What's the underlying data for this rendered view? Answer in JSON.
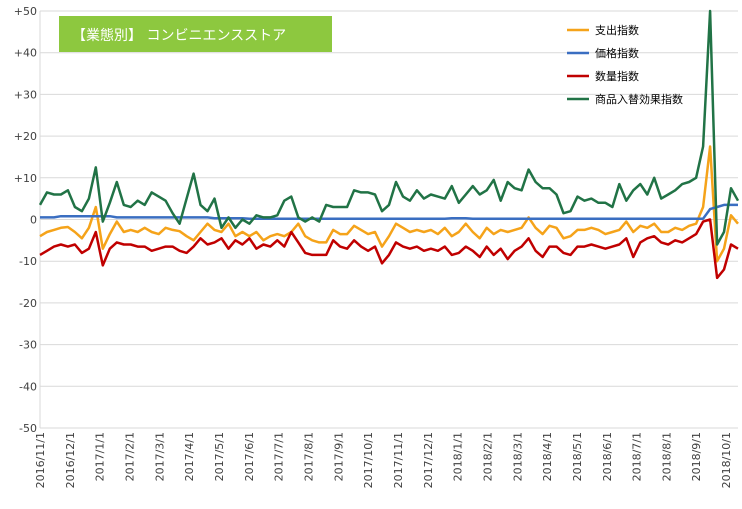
{
  "chart_data": {
    "type": "line",
    "title": "【業態別】 コンビニエンスストア",
    "xlabel": "",
    "ylabel": "",
    "ylim": [
      -50,
      50
    ],
    "yticks": [
      "+50",
      "+40",
      "+30",
      "+20",
      "+10",
      "0",
      "-10",
      "-20",
      "-30",
      "-40",
      "-50"
    ],
    "ytick_values": [
      50,
      40,
      30,
      20,
      10,
      0,
      -10,
      -20,
      -30,
      -40,
      -50
    ],
    "xtick_labels": [
      "2016/11/1",
      "2016/12/1",
      "2017/1/1",
      "2017/2/1",
      "2017/3/1",
      "2017/4/1",
      "2017/5/1",
      "2017/6/1",
      "2017/7/1",
      "2017/8/1",
      "2017/9/1",
      "2017/10/1",
      "2017/11/1",
      "2017/12/1",
      "2018/1/1",
      "2018/2/1",
      "2018/3/1",
      "2018/4/1",
      "2018/5/1",
      "2018/6/1",
      "2018/7/1",
      "2018/8/1",
      "2018/9/1",
      "2018/10/1"
    ],
    "x_period": "weekly",
    "x_start": "2016/11/1",
    "grid": true,
    "legend": "top-right",
    "series": [
      {
        "name": "支出指数",
        "color": "#f5a31a",
        "values": [
          -4.0,
          -3.0,
          -2.5,
          -2.0,
          -1.8,
          -3.0,
          -4.5,
          -2.0,
          3.0,
          -7.0,
          -3.5,
          -0.5,
          -3.0,
          -2.5,
          -3.0,
          -2.0,
          -3.0,
          -3.5,
          -2.0,
          -2.5,
          -2.8,
          -4.0,
          -5.0,
          -3.0,
          -1.0,
          -2.5,
          -3.0,
          -1.0,
          -4.0,
          -3.0,
          -4.0,
          -3.0,
          -5.0,
          -4.0,
          -3.5,
          -4.0,
          -3.0,
          -1.0,
          -4.0,
          -5.0,
          -5.5,
          -5.5,
          -2.5,
          -3.5,
          -3.5,
          -1.5,
          -2.5,
          -3.5,
          -3.0,
          -6.5,
          -4.0,
          -1.0,
          -2.0,
          -3.0,
          -2.5,
          -3.0,
          -2.5,
          -3.5,
          -2.0,
          -4.0,
          -3.0,
          -1.0,
          -3.0,
          -4.5,
          -2.0,
          -3.5,
          -2.5,
          -3.0,
          -2.5,
          -2.0,
          0.5,
          -2.0,
          -3.5,
          -1.5,
          -2.0,
          -4.5,
          -4.0,
          -2.5,
          -2.5,
          -2.0,
          -2.5,
          -3.5,
          -3.0,
          -2.5,
          -0.5,
          -3.0,
          -1.5,
          -2.0,
          -1.0,
          -3.0,
          -3.0,
          -2.0,
          -2.5,
          -1.5,
          -1.0,
          3.0,
          17.5,
          -10.0,
          -7.0,
          1.0,
          -1.0
        ]
      },
      {
        "name": "価格指数",
        "color": "#3a6ec1",
        "values": [
          0.5,
          0.5,
          0.5,
          0.8,
          0.8,
          0.8,
          0.8,
          0.8,
          0.8,
          0.8,
          0.8,
          0.5,
          0.5,
          0.5,
          0.5,
          0.5,
          0.5,
          0.5,
          0.5,
          0.5,
          0.5,
          0.5,
          0.5,
          0.5,
          0.5,
          0.3,
          0.3,
          0.3,
          0.3,
          0.3,
          0.2,
          0.2,
          0.2,
          0.2,
          0.2,
          0.2,
          0.2,
          0.2,
          0.2,
          0.2,
          0.2,
          0.2,
          0.2,
          0.2,
          0.2,
          0.2,
          0.2,
          0.2,
          0.2,
          0.2,
          0.2,
          0.2,
          0.2,
          0.2,
          0.2,
          0.2,
          0.2,
          0.2,
          0.2,
          0.3,
          0.3,
          0.3,
          0.2,
          0.2,
          0.2,
          0.2,
          0.2,
          0.2,
          0.2,
          0.2,
          0.2,
          0.2,
          0.2,
          0.2,
          0.2,
          0.2,
          0.2,
          0.2,
          0.2,
          0.2,
          0.2,
          0.2,
          0.2,
          0.2,
          0.2,
          0.2,
          0.2,
          0.2,
          0.2,
          0.2,
          0.2,
          0.2,
          0.2,
          0.2,
          0.2,
          0.2,
          2.5,
          3.0,
          3.5,
          3.5,
          3.5
        ]
      },
      {
        "name": "数量指数",
        "color": "#c00000",
        "values": [
          -8.5,
          -7.5,
          -6.5,
          -6.0,
          -6.5,
          -6.0,
          -8.0,
          -7.0,
          -3.0,
          -11.0,
          -7.0,
          -5.5,
          -6.0,
          -6.0,
          -6.5,
          -6.5,
          -7.5,
          -7.0,
          -6.5,
          -6.5,
          -7.5,
          -8.0,
          -6.5,
          -4.5,
          -6.0,
          -5.5,
          -4.5,
          -7.0,
          -5.0,
          -6.0,
          -4.5,
          -7.0,
          -6.0,
          -6.5,
          -5.0,
          -6.5,
          -3.0,
          -5.5,
          -8.0,
          -8.5,
          -8.5,
          -8.5,
          -5.0,
          -6.5,
          -7.0,
          -5.0,
          -6.5,
          -7.5,
          -6.5,
          -10.5,
          -8.5,
          -5.5,
          -6.5,
          -7.0,
          -6.5,
          -7.5,
          -7.0,
          -7.5,
          -6.5,
          -8.5,
          -8.0,
          -6.5,
          -7.5,
          -9.0,
          -6.5,
          -8.5,
          -7.0,
          -9.5,
          -7.5,
          -6.5,
          -4.5,
          -7.5,
          -9.0,
          -6.5,
          -6.5,
          -8.0,
          -8.5,
          -6.5,
          -6.5,
          -6.0,
          -6.5,
          -7.0,
          -6.5,
          -6.0,
          -4.5,
          -9.0,
          -5.5,
          -4.5,
          -4.0,
          -5.5,
          -6.0,
          -5.0,
          -5.5,
          -4.5,
          -3.5,
          -0.5,
          0.0,
          -14.0,
          -12.0,
          -6.0,
          -7.0
        ]
      },
      {
        "name": "商品入替効果指数",
        "color": "#217346",
        "values": [
          3.5,
          6.5,
          6.0,
          6.0,
          7.0,
          3.0,
          2.0,
          5.0,
          12.5,
          -0.5,
          4.0,
          9.0,
          3.5,
          3.0,
          4.5,
          3.5,
          6.5,
          5.5,
          4.5,
          1.5,
          -1.0,
          5.0,
          11.0,
          3.5,
          2.0,
          5.0,
          -2.0,
          0.5,
          -2.0,
          0.0,
          -1.0,
          1.0,
          0.5,
          0.5,
          1.0,
          4.5,
          5.5,
          0.5,
          -0.5,
          0.5,
          -0.5,
          3.5,
          3.0,
          3.0,
          3.0,
          7.0,
          6.5,
          6.5,
          6.0,
          2.0,
          3.5,
          9.0,
          5.5,
          4.5,
          7.0,
          5.0,
          6.0,
          5.5,
          5.0,
          8.0,
          4.0,
          6.0,
          8.0,
          6.0,
          7.0,
          9.5,
          4.5,
          9.0,
          7.5,
          7.0,
          12.0,
          9.0,
          7.5,
          7.5,
          6.0,
          1.5,
          2.0,
          5.5,
          4.5,
          5.0,
          4.0,
          4.0,
          3.0,
          8.5,
          4.5,
          7.0,
          8.5,
          6.0,
          10.0,
          5.0,
          6.0,
          7.0,
          8.5,
          9.0,
          10.0,
          17.5,
          50.0,
          -6.0,
          -3.0,
          7.5,
          4.5
        ]
      }
    ]
  }
}
